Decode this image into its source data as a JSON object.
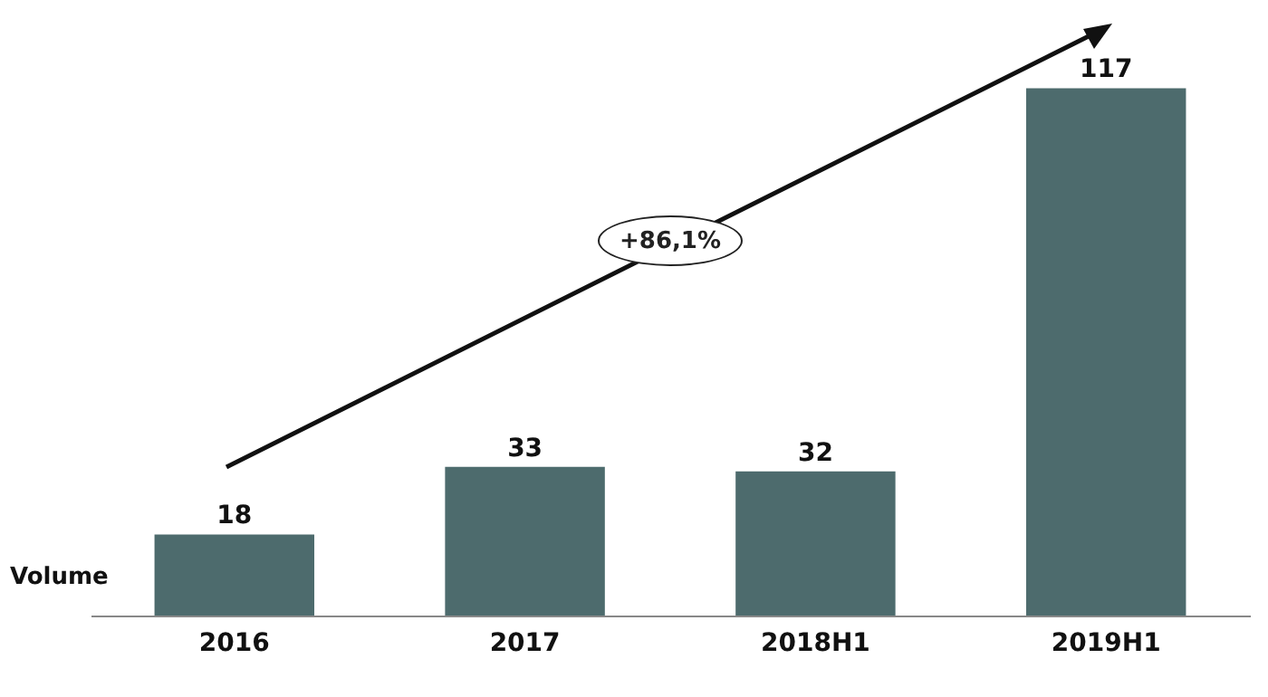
{
  "chart_data": {
    "type": "bar",
    "ylabel": "Volume",
    "categories": [
      "2016",
      "2017",
      "2018H1",
      "2019H1"
    ],
    "values": [
      18,
      33,
      32,
      117
    ],
    "color": "#4d6b6d",
    "data_labels": true,
    "tick_labels": "x",
    "grid": false,
    "annotations": [
      "+86,1%"
    ]
  }
}
